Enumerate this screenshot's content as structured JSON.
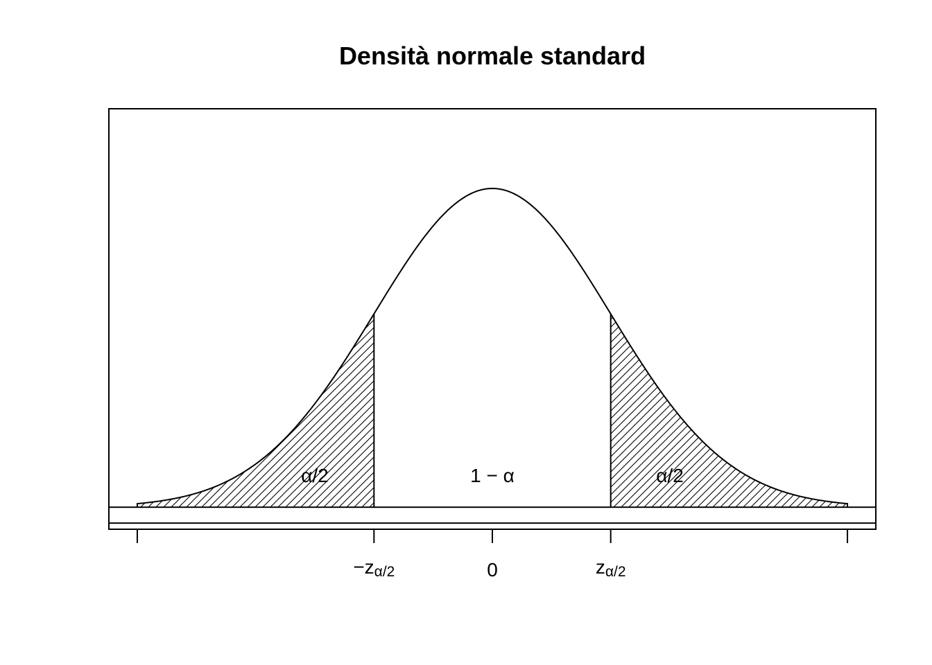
{
  "chart_data": {
    "type": "area",
    "title": "Densità normale standard",
    "xlabel": "",
    "ylabel": "",
    "grid": false,
    "xlim": [
      -3.24,
      3.24
    ],
    "ylim": [
      -0.0553,
      1.0
    ],
    "x_range": [
      -3,
      3
    ],
    "critical_value": 1,
    "curve": {
      "name": "",
      "function": "standard-normal-density",
      "peak": 0.8
    },
    "baseline_band": [
      -0.0399,
      0
    ],
    "x_ticks": [
      {
        "x": -3,
        "label_main": "",
        "label_sub": ""
      },
      {
        "x": -1,
        "label_main": "−z",
        "label_sub": "α/2"
      },
      {
        "x": 0,
        "label_main": "0",
        "label_sub": ""
      },
      {
        "x": 1,
        "label_main": "z",
        "label_sub": "α/2"
      },
      {
        "x": 3,
        "label_main": "",
        "label_sub": ""
      }
    ],
    "regions": [
      {
        "name": "left-tail",
        "from": -3,
        "to": -1,
        "hatched": true,
        "label": "α/2",
        "label_x": -1.5
      },
      {
        "name": "center",
        "from": -1,
        "to": 1,
        "hatched": false,
        "label": "1 − α",
        "label_x": 0
      },
      {
        "name": "right-tail",
        "from": 1,
        "to": 3,
        "hatched": true,
        "label": "α/2",
        "label_x": 1.5
      }
    ],
    "colors": {
      "line": "#000000",
      "background": "#ffffff"
    }
  }
}
